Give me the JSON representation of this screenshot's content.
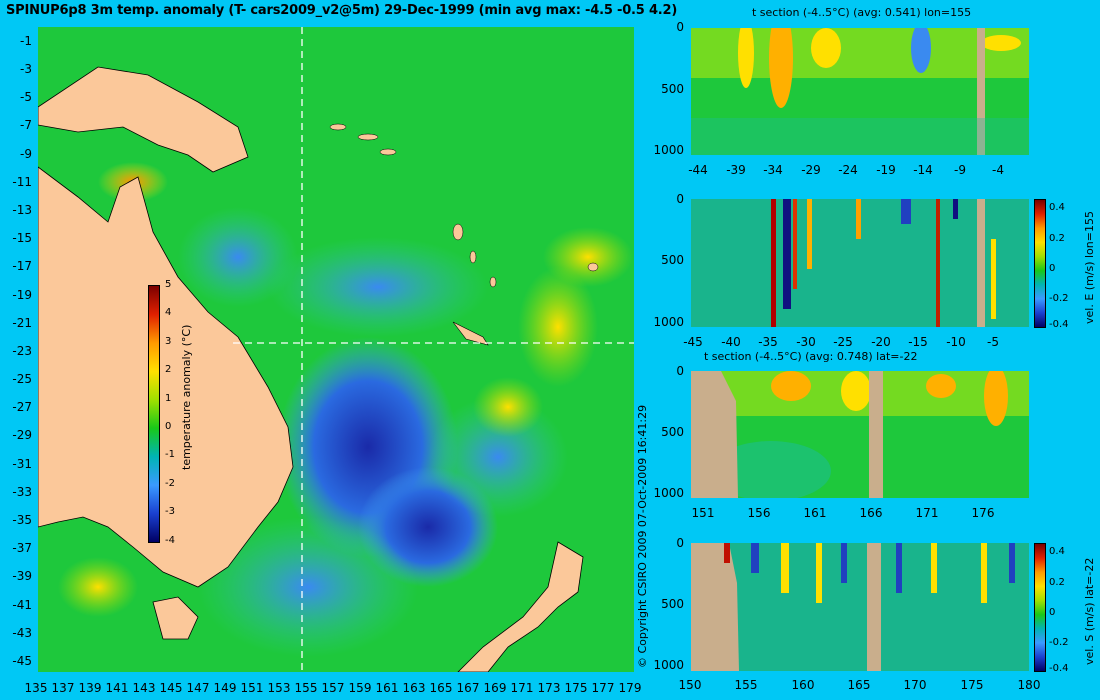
{
  "title": "SPINUP6p8 3m temp. anomaly (T- cars2009_v2@5m) 29-Dec-1999 (min avg max: -4.5 -0.5 4.2)",
  "map": {
    "lat_ticks": [
      "-1",
      "-3",
      "-5",
      "-7",
      "-9",
      "-11",
      "-13",
      "-15",
      "-17",
      "-19",
      "-21",
      "-23",
      "-25",
      "-27",
      "-29",
      "-31",
      "-33",
      "-35",
      "-37",
      "-39",
      "-41",
      "-43",
      "-45"
    ],
    "lon_ticks": [
      "135",
      "137",
      "139",
      "141",
      "143",
      "145",
      "147",
      "149",
      "151",
      "153",
      "155",
      "157",
      "159",
      "161",
      "163",
      "165",
      "167",
      "169",
      "171",
      "173",
      "175",
      "177",
      "179"
    ],
    "colorbar": {
      "label": "temperature anomaly (°C)",
      "ticks": [
        "5",
        "4",
        "3",
        "2",
        "1",
        "0",
        "-1",
        "-2",
        "-3",
        "-4"
      ]
    },
    "section_lon": 155,
    "section_lat": -22
  },
  "copyright": "© Copyright CSIRO 2009   07-Oct-2009 16:41:29",
  "panels": [
    {
      "title": "t section (-4..5°C) (avg: 0.541) lon=155",
      "y_ticks": [
        "0",
        "500",
        "1000"
      ],
      "x_ticks": [
        "-44",
        "-39",
        "-34",
        "-29",
        "-24",
        "-19",
        "-14",
        "-9",
        "-4"
      ]
    },
    {
      "title": "",
      "y_ticks": [
        "0",
        "500",
        "1000"
      ],
      "x_ticks": [
        "-45",
        "-40",
        "-35",
        "-30",
        "-25",
        "-20",
        "-15",
        "-10",
        "-5"
      ],
      "colorbar_label": "vel. E (m/s) lon=155",
      "colorbar_ticks": [
        "0.4",
        "0.2",
        "0",
        "-0.2",
        "-0.4"
      ]
    },
    {
      "title": "t section (-4..5°C) (avg: 0.748) lat=-22",
      "y_ticks": [
        "0",
        "500",
        "1000"
      ],
      "x_ticks": [
        "151",
        "156",
        "161",
        "166",
        "171",
        "176"
      ]
    },
    {
      "title": "",
      "y_ticks": [
        "0",
        "500",
        "1000"
      ],
      "x_ticks": [
        "150",
        "155",
        "160",
        "165",
        "170",
        "175",
        "180"
      ],
      "colorbar_label": "vel. S (m/s) lat=-22",
      "colorbar_ticks": [
        "0.4",
        "0.2",
        "0",
        "-0.2",
        "-0.4"
      ]
    }
  ]
}
